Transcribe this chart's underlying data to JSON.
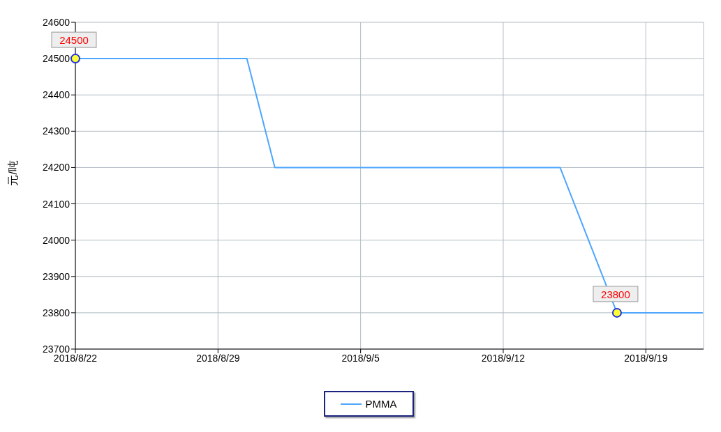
{
  "chart_data": {
    "type": "line",
    "ylabel": "元/吨",
    "x": [
      "2018-08-22",
      "2018-08-30T10:00",
      "2018-08-31T19:00",
      "2018-09-14T19:00",
      "2018-09-17T14:00",
      "2018-09-21T19:00"
    ],
    "series": [
      {
        "name": "PMMA",
        "color": "#4da6ff",
        "values": [
          24500,
          24500,
          24200,
          24200,
          23800,
          23800
        ]
      }
    ],
    "xlim": [
      "2018-08-22",
      "2018-09-21T20:00"
    ],
    "xticks": [
      {
        "value": "2018-08-22",
        "label": "2018/8/22"
      },
      {
        "value": "2018-08-29",
        "label": "2018/8/29"
      },
      {
        "value": "2018-09-05",
        "label": "2018/9/5"
      },
      {
        "value": "2018-09-12",
        "label": "2018/9/12"
      },
      {
        "value": "2018-09-19",
        "label": "2018/9/19"
      }
    ],
    "ylim": [
      23700,
      24600
    ],
    "yticks": [
      23700,
      23800,
      23900,
      24000,
      24100,
      24200,
      24300,
      24400,
      24500,
      24600
    ],
    "annotations": [
      {
        "text": "24500",
        "x": "2018-08-22",
        "y": 24500
      },
      {
        "text": "23800",
        "x": "2018-09-17T14:00",
        "y": 23800
      }
    ],
    "grid": true,
    "legend": "bottom",
    "marker": "none",
    "line_style": "solid"
  }
}
